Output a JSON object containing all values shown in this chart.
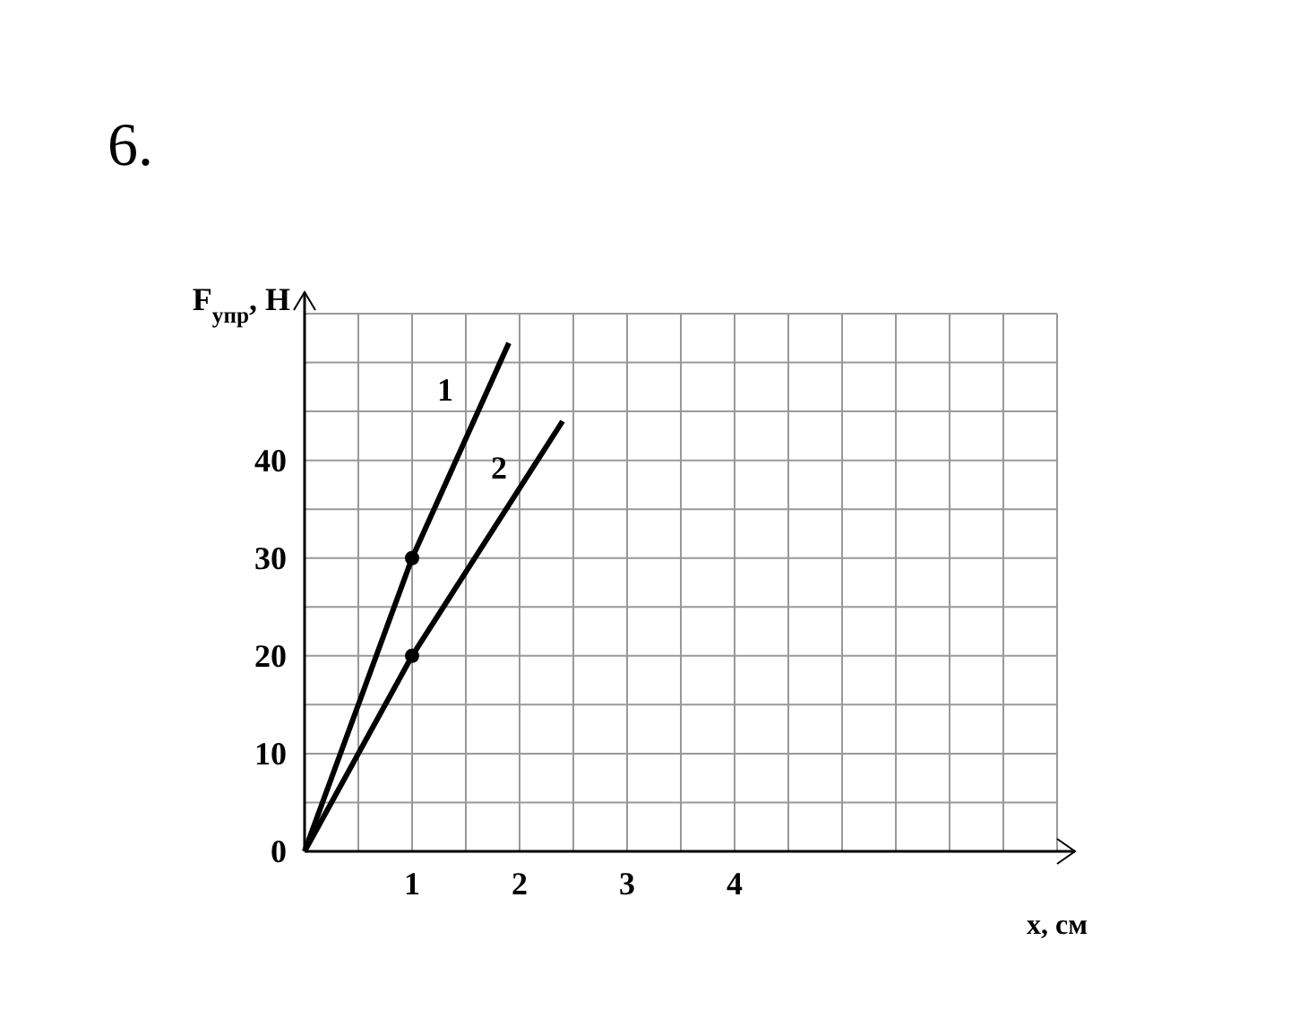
{
  "chart_data": {
    "type": "line",
    "title": "6.",
    "xlabel": "x, см",
    "ylabel": "F$_{упр}$, Н",
    "xlim": [
      0,
      7
    ],
    "ylim": [
      0,
      55
    ],
    "xticks": [
      1,
      2,
      3,
      4
    ],
    "yticks": [
      0,
      10,
      20,
      30,
      40
    ],
    "grid": true,
    "line_style": "solid",
    "series": [
      {
        "name": "1",
        "color": "#000000",
        "x": [
          0,
          1,
          1.9
        ],
        "values": [
          0,
          30,
          52
        ],
        "marker": "none"
      },
      {
        "name": "2",
        "color": "#000000",
        "x": [
          0,
          1,
          2.4
        ],
        "values": [
          0,
          20,
          44
        ],
        "marker": "none"
      },
      {
        "type": "scatter",
        "color": "#000000",
        "x": [
          1,
          1
        ],
        "values": [
          30,
          20
        ],
        "marker": "circle"
      }
    ]
  }
}
